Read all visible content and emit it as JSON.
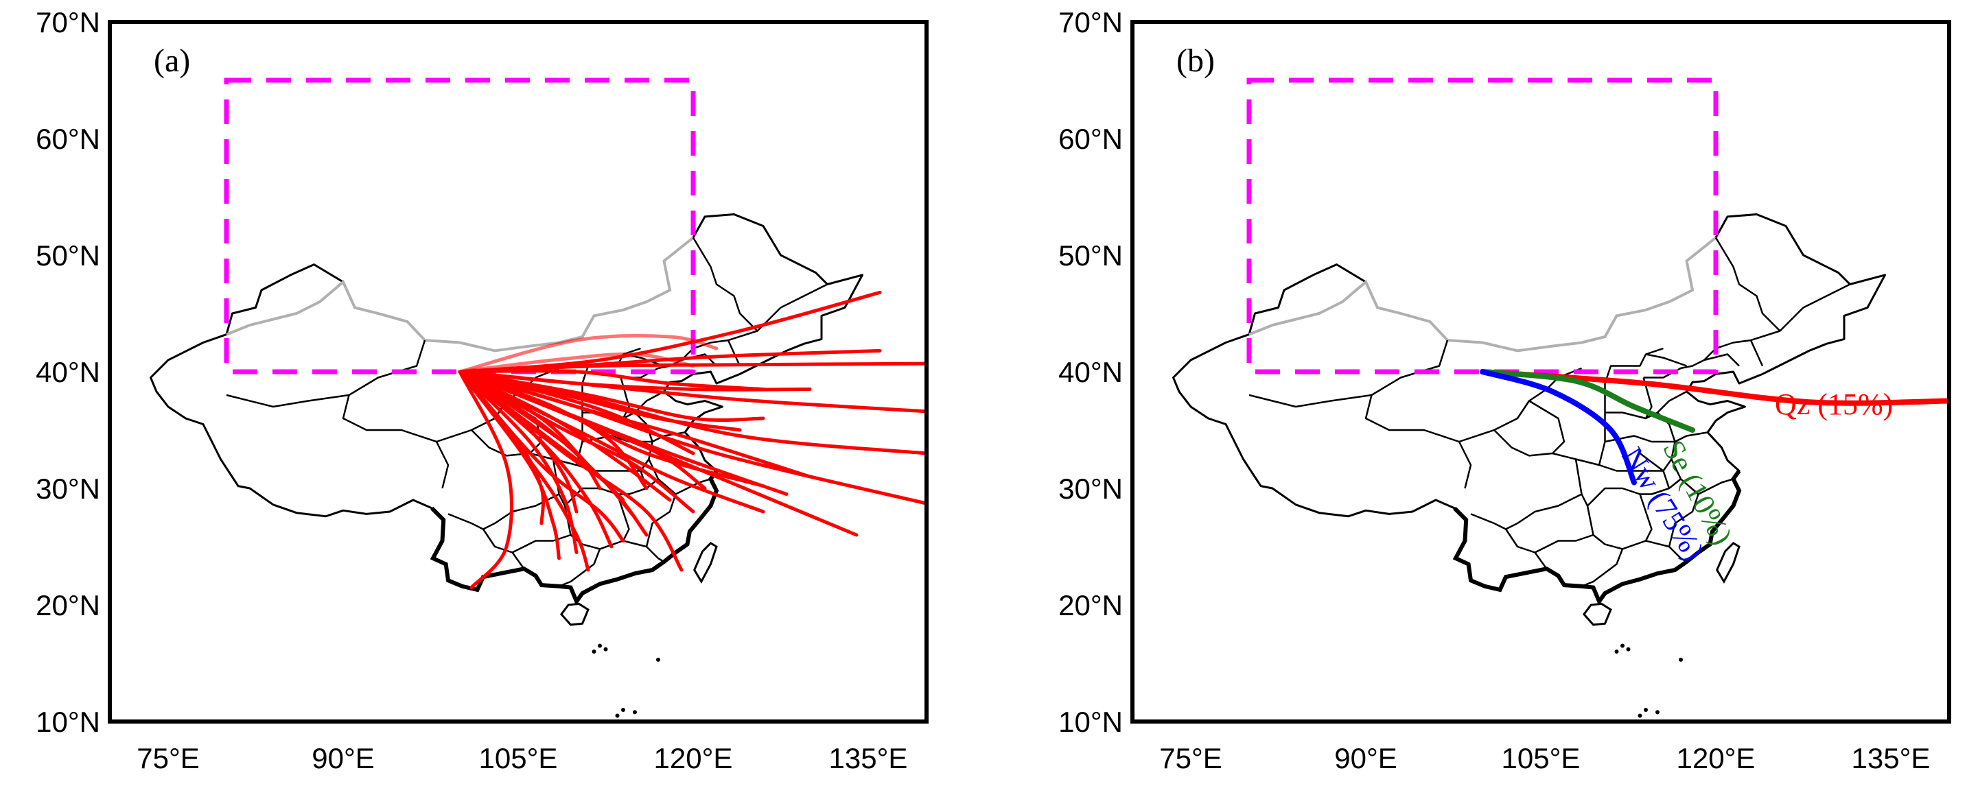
{
  "figure": {
    "lon_ticks": [
      75,
      90,
      105,
      120,
      135
    ],
    "lat_ticks": [
      10,
      20,
      30,
      40,
      50,
      60,
      70
    ],
    "lon_tick_labels": [
      "75°E",
      "90°E",
      "105°E",
      "120°E",
      "135°E"
    ],
    "lat_tick_labels": [
      "10°N",
      "20°N",
      "30°N",
      "40°N",
      "50°N",
      "60°N",
      "70°N"
    ],
    "lon_range": [
      70,
      140
    ],
    "lat_range": [
      10,
      70
    ],
    "source_region_box": {
      "lon": [
        80,
        120
      ],
      "lat": [
        40,
        65
      ],
      "color": "#ff00ff",
      "style": "dashed"
    },
    "origin": {
      "lon": 100,
      "lat": 40
    }
  },
  "panel_a": {
    "label": "(a)",
    "trajectory_color": "#ff0000",
    "trajectories": [
      [
        [
          100,
          40
        ],
        [
          110,
          40.5
        ],
        [
          122,
          41.3
        ],
        [
          136,
          41.8
        ]
      ],
      [
        [
          100,
          40
        ],
        [
          112,
          40.5
        ],
        [
          124,
          40.6
        ],
        [
          140,
          40.7
        ]
      ],
      [
        [
          100,
          40
        ],
        [
          112,
          41
        ],
        [
          124,
          43.5
        ],
        [
          136,
          46.8
        ]
      ],
      [
        [
          100,
          40
        ],
        [
          110,
          39
        ],
        [
          124,
          37.6
        ],
        [
          140,
          36.6
        ]
      ],
      [
        [
          100,
          40
        ],
        [
          110,
          38
        ],
        [
          124,
          34.5
        ],
        [
          140,
          33
        ]
      ],
      [
        [
          100,
          40
        ],
        [
          110,
          37
        ],
        [
          122,
          33
        ],
        [
          140,
          28.7
        ]
      ],
      [
        [
          100,
          40
        ],
        [
          110,
          36
        ],
        [
          122,
          31
        ],
        [
          134,
          26
        ]
      ],
      [
        [
          100,
          40
        ],
        [
          108,
          37
        ],
        [
          116,
          33
        ],
        [
          126,
          30.2
        ]
      ],
      [
        [
          100,
          40
        ],
        [
          110,
          39
        ],
        [
          120,
          38.5
        ],
        [
          130,
          38.5
        ]
      ],
      [
        [
          100,
          40
        ],
        [
          110,
          40
        ],
        [
          118,
          39
        ],
        [
          126,
          38.5
        ]
      ],
      [
        [
          100,
          40
        ],
        [
          110,
          42.7
        ],
        [
          118,
          43
        ],
        [
          122,
          42
        ]
      ],
      [
        [
          100,
          40
        ],
        [
          108,
          41
        ],
        [
          115,
          41.5
        ],
        [
          120,
          40.5
        ]
      ],
      [
        [
          100,
          40
        ],
        [
          108,
          38
        ],
        [
          114,
          36
        ],
        [
          120,
          33
        ]
      ],
      [
        [
          100,
          40
        ],
        [
          108,
          37
        ],
        [
          113,
          34
        ],
        [
          116,
          30
        ]
      ],
      [
        [
          100,
          40
        ],
        [
          107,
          36
        ],
        [
          111,
          32
        ],
        [
          114,
          29
        ]
      ],
      [
        [
          100,
          40
        ],
        [
          106,
          35
        ],
        [
          109,
          31
        ],
        [
          110,
          28
        ]
      ],
      [
        [
          100,
          40
        ],
        [
          105,
          34
        ],
        [
          107,
          30
        ],
        [
          107,
          27
        ]
      ],
      [
        [
          100,
          40
        ],
        [
          106,
          34
        ],
        [
          109,
          29
        ],
        [
          110,
          24.5
        ]
      ],
      [
        [
          100,
          40
        ],
        [
          107,
          34
        ],
        [
          111,
          29
        ],
        [
          113,
          25
        ]
      ],
      [
        [
          100,
          40
        ],
        [
          108,
          34
        ],
        [
          113,
          30
        ],
        [
          116,
          26
        ]
      ],
      [
        [
          100,
          40
        ],
        [
          109,
          35
        ],
        [
          115,
          32
        ],
        [
          120,
          28
        ]
      ],
      [
        [
          100,
          40
        ],
        [
          110,
          36
        ],
        [
          117,
          33
        ],
        [
          121,
          30
        ]
      ],
      [
        [
          100,
          40
        ],
        [
          109,
          33
        ],
        [
          116,
          28
        ],
        [
          119,
          23
        ]
      ],
      [
        [
          100,
          40
        ],
        [
          107,
          31
        ],
        [
          110,
          26
        ],
        [
          111,
          23
        ]
      ],
      [
        [
          100,
          40
        ],
        [
          107,
          32
        ],
        [
          112,
          28
        ],
        [
          114,
          25.5
        ]
      ],
      [
        [
          100,
          40
        ],
        [
          104,
          32
        ],
        [
          104,
          25
        ],
        [
          101,
          21.5
        ]
      ],
      [
        [
          100,
          40
        ],
        [
          106,
          32
        ],
        [
          108,
          27
        ],
        [
          108.5,
          24
        ]
      ],
      [
        [
          100,
          40
        ],
        [
          110,
          35
        ],
        [
          118,
          31
        ],
        [
          126,
          28
        ]
      ],
      [
        [
          100,
          40
        ],
        [
          111,
          38
        ],
        [
          120,
          36
        ],
        [
          126,
          36
        ]
      ],
      [
        [
          100,
          40
        ],
        [
          109,
          38
        ],
        [
          117,
          36
        ],
        [
          124,
          35
        ]
      ],
      [
        [
          100,
          40
        ],
        [
          108,
          36
        ],
        [
          114,
          32
        ],
        [
          118,
          29
        ]
      ],
      [
        [
          100,
          40
        ],
        [
          106,
          36
        ],
        [
          110,
          33
        ],
        [
          112,
          30
        ]
      ],
      [
        [
          100,
          40
        ],
        [
          107,
          35.5
        ],
        [
          112,
          31
        ],
        [
          115,
          27.5
        ]
      ],
      [
        [
          100,
          40
        ],
        [
          110,
          37
        ],
        [
          119,
          34.5
        ],
        [
          130,
          31
        ]
      ],
      [
        [
          100,
          40
        ],
        [
          109,
          36.5
        ],
        [
          118,
          33
        ],
        [
          128,
          29.5
        ]
      ]
    ]
  },
  "panel_b": {
    "label": "(b)",
    "clusters": [
      {
        "name": "Qz (15%)",
        "color": "#ff0000",
        "path": [
          [
            100,
            40
          ],
          [
            114,
            39
          ],
          [
            128,
            37.4
          ],
          [
            140,
            37.5
          ]
        ]
      },
      {
        "name": "Se (10%)",
        "color": "#1a7f1a",
        "path": [
          [
            100,
            40
          ],
          [
            108,
            39.2
          ],
          [
            113,
            37
          ],
          [
            118,
            35
          ]
        ]
      },
      {
        "name": "Nw (75%)",
        "color": "#0000ff",
        "path": [
          [
            100,
            40
          ],
          [
            106,
            38.3
          ],
          [
            111,
            35
          ],
          [
            113,
            30.5
          ]
        ]
      }
    ]
  }
}
